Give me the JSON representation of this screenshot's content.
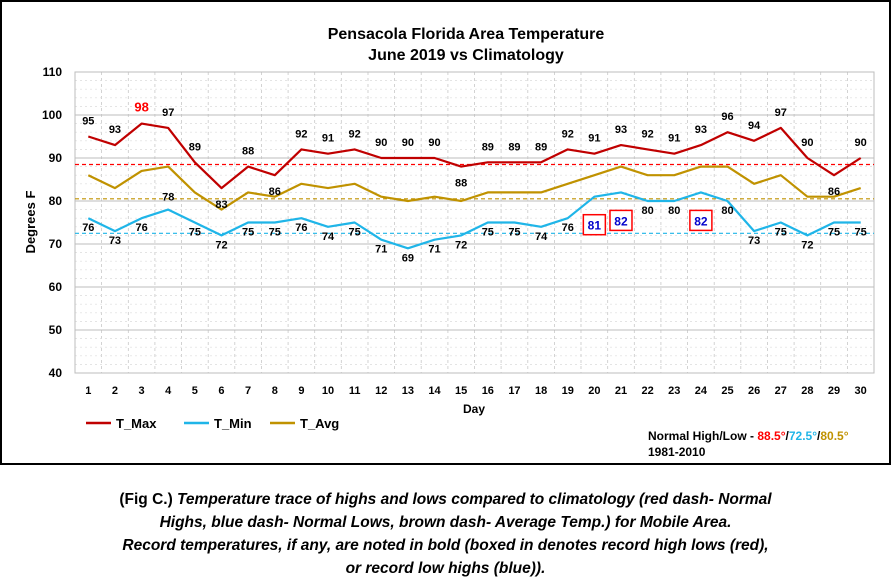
{
  "chart_data": {
    "type": "line",
    "title": "Pensacola Florida Area Temperature",
    "subtitle": "June 2019 vs Climatology",
    "xlabel": "Day",
    "ylabel": "Degrees F",
    "ylim": [
      40,
      110
    ],
    "yticks": [
      40,
      50,
      60,
      70,
      80,
      90,
      100,
      110
    ],
    "x": [
      1,
      2,
      3,
      4,
      5,
      6,
      7,
      8,
      9,
      10,
      11,
      12,
      13,
      14,
      15,
      16,
      17,
      18,
      19,
      20,
      21,
      22,
      23,
      24,
      25,
      26,
      27,
      28,
      29,
      30
    ],
    "grid": true,
    "legend_placement": "bottom-left",
    "series": [
      {
        "name": "T_Max",
        "color": "#c00000",
        "values": [
          95,
          93,
          98,
          97,
          89,
          83,
          88,
          86,
          92,
          91,
          92,
          90,
          90,
          90,
          88,
          89,
          89,
          89,
          92,
          91,
          93,
          92,
          91,
          93,
          96,
          94,
          97,
          90,
          86,
          90
        ],
        "labeled": true
      },
      {
        "name": "T_Min",
        "color": "#1fb5e8",
        "values": [
          76,
          73,
          76,
          78,
          75,
          72,
          75,
          75,
          76,
          74,
          75,
          71,
          69,
          71,
          72,
          75,
          75,
          74,
          76,
          81,
          82,
          80,
          80,
          82,
          80,
          73,
          75,
          72,
          75,
          75
        ],
        "labeled": true
      },
      {
        "name": "T_Avg",
        "color": "#c09200",
        "values": [
          86,
          83,
          87,
          88,
          82,
          78,
          82,
          81,
          84,
          83,
          84,
          81,
          80,
          81,
          80,
          82,
          82,
          82,
          84,
          86,
          88,
          86,
          86,
          88,
          88,
          84,
          86,
          81,
          81,
          83
        ],
        "labeled": false
      }
    ],
    "normals": [
      {
        "value": 88.5,
        "color": "#ff0000"
      },
      {
        "value": 72.5,
        "color": "#1fb5e8"
      },
      {
        "value": 80.5,
        "color": "#c09200"
      }
    ],
    "record_labels": [
      {
        "series": "T_Max",
        "day": 3,
        "value": 98,
        "color": "#ff0000",
        "boxed": false
      },
      {
        "series": "T_Min",
        "day": 20,
        "value": 81,
        "color": "#0000cc",
        "boxed": true,
        "box_color": "#ff0000"
      },
      {
        "series": "T_Min",
        "day": 21,
        "value": 82,
        "color": "#0000cc",
        "boxed": true,
        "box_color": "#ff0000"
      },
      {
        "series": "T_Min",
        "day": 24,
        "value": 82,
        "color": "#0000cc",
        "boxed": true,
        "box_color": "#ff0000"
      }
    ],
    "normals_note": {
      "label": "Normal High/Low - ",
      "high": "88.5°",
      "sep1": "/",
      "low": "72.5°",
      "sep2": "/",
      "avg": "80.5°",
      "period": "1981-2010",
      "high_color": "#ff0000",
      "low_color": "#1fb5e8",
      "avg_color": "#c09200"
    }
  },
  "caption": {
    "fig_label": "(Fig C.)",
    "line1": " Temperature trace of highs and lows compared to climatology (red dash- Normal",
    "line2": "Highs, blue dash- Normal Lows, brown dash- Average Temp.) for Mobile Area.",
    "line3": "Record temperatures, if any, are noted in bold (boxed in denotes record high lows (red),",
    "line4": "or record low highs (blue))."
  }
}
